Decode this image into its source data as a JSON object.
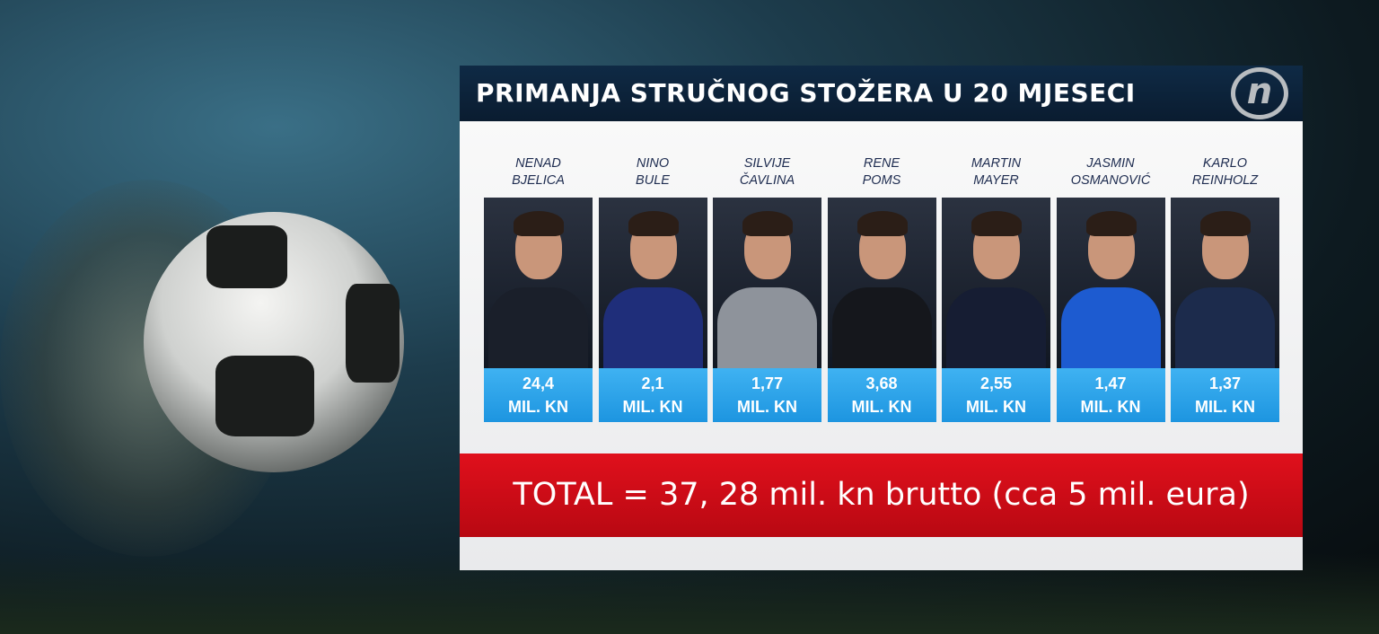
{
  "header": {
    "title": "PRIMANJA STRUČNOG STOŽERA U 20 MJESECI",
    "logo": "n"
  },
  "colors": {
    "header": "#0f2a45",
    "value_box": "#2aa3ea",
    "total_bar": "#d40c17"
  },
  "staff": [
    {
      "first": "NENAD",
      "last": "BJELICA",
      "value": "24,4",
      "unit": "MIL. KN",
      "outfit": "#1a1f2a"
    },
    {
      "first": "NINO",
      "last": "BULE",
      "value": "2,1",
      "unit": "MIL. KN",
      "outfit": "#1f2e7a"
    },
    {
      "first": "SILVIJE",
      "last": "ČAVLINA",
      "value": "1,77",
      "unit": "MIL. KN",
      "outfit": "#8e939b"
    },
    {
      "first": "RENE",
      "last": "POMS",
      "value": "3,68",
      "unit": "MIL. KN",
      "outfit": "#15171c"
    },
    {
      "first": "MARTIN",
      "last": "MAYER",
      "value": "2,55",
      "unit": "MIL. KN",
      "outfit": "#161d33"
    },
    {
      "first": "JASMIN",
      "last": "OSMANOVIĆ",
      "value": "1,47",
      "unit": "MIL. KN",
      "outfit": "#1d5bd0"
    },
    {
      "first": "KARLO",
      "last": "REINHOLZ",
      "value": "1,37",
      "unit": "MIL. KN",
      "outfit": "#1c2b4c"
    }
  ],
  "total": "TOTAL = 37, 28 mil. kn brutto (cca 5 mil. eura)"
}
